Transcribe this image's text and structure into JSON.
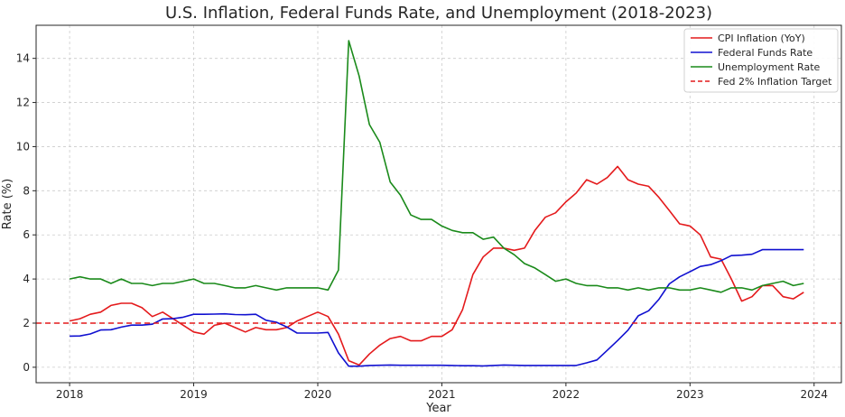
{
  "chart_data": {
    "type": "line",
    "title": "U.S. Inflation, Federal Funds Rate, and Unemployment (2018-2023)",
    "xlabel": "Year",
    "ylabel": "Rate (%)",
    "xlim": [
      2017.73,
      2024.22
    ],
    "ylim": [
      -0.7,
      15.5
    ],
    "xticks": [
      2018,
      2019,
      2020,
      2021,
      2022,
      2023,
      2024
    ],
    "yticks": [
      0,
      2,
      4,
      6,
      8,
      10,
      12,
      14
    ],
    "grid": true,
    "legend_position": "top-right",
    "x_start": 2018.0,
    "x_step": 0.08333,
    "series": [
      {
        "name": "CPI Inflation (YoY)",
        "color": "#e41a1c",
        "dash": "solid",
        "values": [
          2.1,
          2.2,
          2.4,
          2.5,
          2.8,
          2.9,
          2.9,
          2.7,
          2.3,
          2.5,
          2.2,
          1.9,
          1.6,
          1.5,
          1.9,
          2.0,
          1.8,
          1.6,
          1.8,
          1.7,
          1.7,
          1.8,
          2.1,
          2.3,
          2.5,
          2.3,
          1.5,
          0.3,
          0.1,
          0.6,
          1.0,
          1.3,
          1.4,
          1.2,
          1.2,
          1.4,
          1.4,
          1.7,
          2.6,
          4.2,
          5.0,
          5.4,
          5.4,
          5.3,
          5.4,
          6.2,
          6.8,
          7.0,
          7.5,
          7.9,
          8.5,
          8.3,
          8.6,
          9.1,
          8.5,
          8.3,
          8.2,
          7.7,
          7.1,
          6.5,
          6.4,
          6.0,
          5.0,
          4.9,
          4.0,
          3.0,
          3.2,
          3.7,
          3.7,
          3.2,
          3.1,
          3.4
        ]
      },
      {
        "name": "Federal Funds Rate",
        "color": "#1010d0",
        "dash": "solid",
        "values": [
          1.41,
          1.42,
          1.51,
          1.69,
          1.7,
          1.82,
          1.91,
          1.91,
          1.95,
          2.19,
          2.2,
          2.27,
          2.4,
          2.4,
          2.41,
          2.42,
          2.39,
          2.38,
          2.4,
          2.13,
          2.04,
          1.83,
          1.55,
          1.55,
          1.55,
          1.58,
          0.65,
          0.05,
          0.05,
          0.08,
          0.09,
          0.1,
          0.09,
          0.09,
          0.09,
          0.09,
          0.09,
          0.08,
          0.07,
          0.07,
          0.06,
          0.08,
          0.1,
          0.09,
          0.08,
          0.08,
          0.08,
          0.08,
          0.08,
          0.08,
          0.2,
          0.33,
          0.77,
          1.21,
          1.68,
          2.33,
          2.56,
          3.08,
          3.78,
          4.1,
          4.33,
          4.57,
          4.65,
          4.83,
          5.06,
          5.08,
          5.12,
          5.33,
          5.33,
          5.33,
          5.33,
          5.33
        ]
      },
      {
        "name": "Unemployment Rate",
        "color": "#1a8a1a",
        "dash": "solid",
        "values": [
          4.0,
          4.1,
          4.0,
          4.0,
          3.8,
          4.0,
          3.8,
          3.8,
          3.7,
          3.8,
          3.8,
          3.9,
          4.0,
          3.8,
          3.8,
          3.7,
          3.6,
          3.6,
          3.7,
          3.6,
          3.5,
          3.6,
          3.6,
          3.6,
          3.6,
          3.5,
          4.4,
          14.8,
          13.2,
          11.0,
          10.2,
          8.4,
          7.8,
          6.9,
          6.7,
          6.7,
          6.4,
          6.2,
          6.1,
          6.1,
          5.8,
          5.9,
          5.4,
          5.1,
          4.7,
          4.5,
          4.2,
          3.9,
          4.0,
          3.8,
          3.7,
          3.7,
          3.6,
          3.6,
          3.5,
          3.6,
          3.5,
          3.6,
          3.6,
          3.5,
          3.5,
          3.6,
          3.5,
          3.4,
          3.6,
          3.6,
          3.5,
          3.7,
          3.8,
          3.9,
          3.7,
          3.8
        ]
      },
      {
        "name": "Fed 2% Inflation Target",
        "color": "#e41a1c",
        "dash": "dashed",
        "hline": 2.0
      }
    ]
  }
}
